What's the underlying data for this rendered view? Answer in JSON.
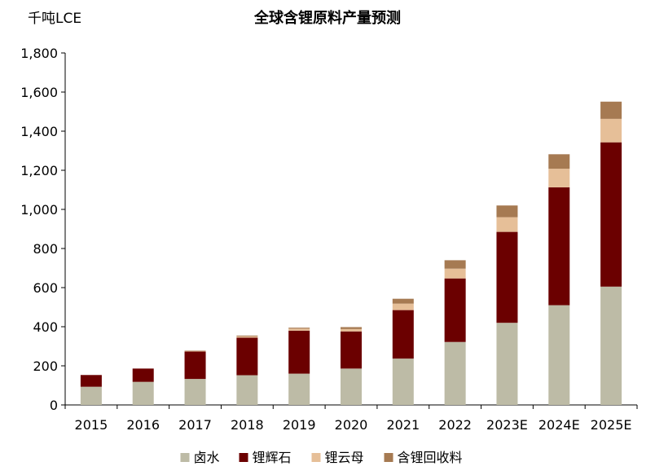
{
  "chart_data": {
    "type": "bar",
    "stacked": true,
    "title": "全球含锂原料产量预测",
    "unit_label": "千吨LCE",
    "categories": [
      "2015",
      "2016",
      "2017",
      "2018",
      "2019",
      "2020",
      "2021",
      "2022",
      "2023E",
      "2024E",
      "2025E"
    ],
    "ylim": [
      0,
      1800
    ],
    "yticks": [
      0,
      200,
      400,
      600,
      800,
      1000,
      1200,
      1400,
      1600,
      1800
    ],
    "ytick_labels": [
      "0",
      "200",
      "400",
      "600",
      "800",
      "1,000",
      "1,200",
      "1,400",
      "1,600",
      "1,800"
    ],
    "grid": false,
    "legend_position": "bottom",
    "series": [
      {
        "name": "卤水",
        "color": "#bdbba6",
        "values": [
          93,
          118,
          133,
          152,
          160,
          186,
          237,
          322,
          420,
          510,
          605
        ]
      },
      {
        "name": "锂辉石",
        "color": "#6b0000",
        "values": [
          60,
          68,
          140,
          192,
          220,
          190,
          248,
          325,
          465,
          603,
          738
        ]
      },
      {
        "name": "锂云母",
        "color": "#e6bf98",
        "values": [
          0,
          0,
          3,
          7,
          10,
          12,
          33,
          50,
          75,
          95,
          120
        ]
      },
      {
        "name": "含锂回收料",
        "color": "#a67a52",
        "values": [
          0,
          0,
          2,
          4,
          5,
          10,
          25,
          43,
          60,
          74,
          88
        ]
      }
    ]
  }
}
